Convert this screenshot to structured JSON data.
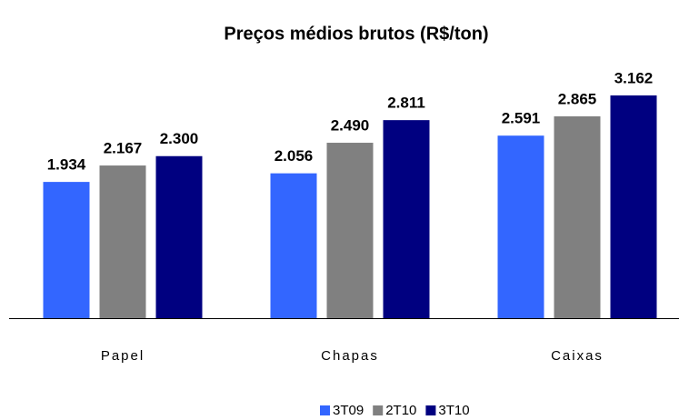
{
  "chart_data": {
    "type": "bar",
    "title": "Preços médios brutos (R$/ton)",
    "categories": [
      "Papel",
      "Chapas",
      "Caixas"
    ],
    "series": [
      {
        "name": "3T09",
        "color": "#3366ff",
        "values": [
          1934,
          2056,
          2591
        ],
        "value_labels": [
          "1.934",
          "2.056",
          "2.591"
        ]
      },
      {
        "name": "2T10",
        "color": "#808080",
        "values": [
          2167,
          2490,
          2865
        ],
        "value_labels": [
          "2.167",
          "2.490",
          "2.865"
        ]
      },
      {
        "name": "3T10",
        "color": "#000080",
        "values": [
          2300,
          2811,
          3162
        ],
        "value_labels": [
          "2.300",
          "2.811",
          "3.162"
        ]
      }
    ],
    "legend": "bottom"
  }
}
